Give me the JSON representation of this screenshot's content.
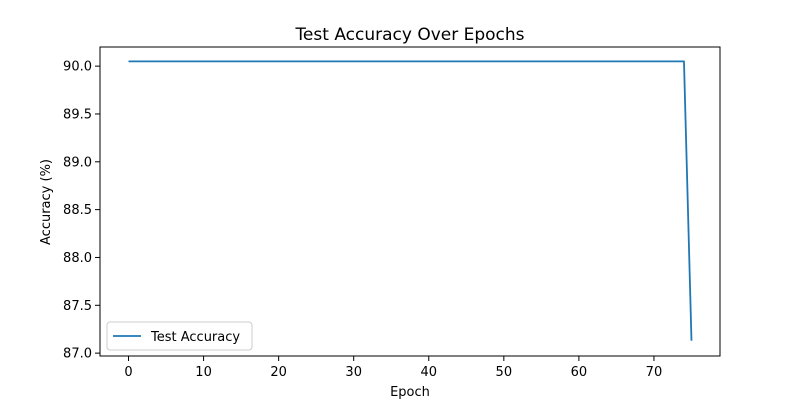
{
  "chart_data": {
    "type": "line",
    "title": "Test Accuracy Over Epochs",
    "xlabel": "Epoch",
    "ylabel": "Accuracy (%)",
    "xlim": [
      -3.8,
      78.8
    ],
    "ylim": [
      86.97,
      90.2
    ],
    "x_ticks": [
      0,
      10,
      20,
      30,
      40,
      50,
      60,
      70
    ],
    "y_ticks": [
      87.0,
      87.5,
      88.0,
      88.5,
      89.0,
      89.5,
      90.0
    ],
    "y_tick_labels": [
      "87.0",
      "87.5",
      "88.0",
      "88.5",
      "89.0",
      "89.5",
      "90.0"
    ],
    "grid": false,
    "legend_position": "lower-left",
    "series": [
      {
        "name": "Test Accuracy",
        "color": "#1f77b4",
        "x": [
          0,
          1,
          2,
          3,
          4,
          5,
          6,
          7,
          8,
          9,
          10,
          11,
          12,
          13,
          14,
          15,
          16,
          17,
          18,
          19,
          20,
          21,
          22,
          23,
          24,
          25,
          26,
          27,
          28,
          29,
          30,
          31,
          32,
          33,
          34,
          35,
          36,
          37,
          38,
          39,
          40,
          41,
          42,
          43,
          44,
          45,
          46,
          47,
          48,
          49,
          50,
          51,
          52,
          53,
          54,
          55,
          56,
          57,
          58,
          59,
          60,
          61,
          62,
          63,
          64,
          65,
          66,
          67,
          68,
          69,
          70,
          71,
          72,
          73,
          74,
          75
        ],
        "y": [
          90.05,
          90.05,
          90.05,
          90.05,
          90.05,
          90.05,
          90.05,
          90.05,
          90.05,
          90.05,
          90.05,
          90.05,
          90.05,
          90.05,
          90.05,
          90.05,
          90.05,
          90.05,
          90.05,
          90.05,
          90.05,
          90.05,
          90.05,
          90.05,
          90.05,
          90.05,
          90.05,
          90.05,
          90.05,
          90.05,
          90.05,
          90.05,
          90.05,
          90.05,
          90.05,
          90.05,
          90.05,
          90.05,
          90.05,
          90.05,
          90.05,
          90.05,
          90.05,
          90.05,
          90.05,
          90.05,
          90.05,
          90.05,
          90.05,
          90.05,
          90.05,
          90.05,
          90.05,
          90.05,
          90.05,
          90.05,
          90.05,
          90.05,
          90.05,
          90.05,
          90.05,
          90.05,
          90.05,
          90.05,
          90.05,
          90.05,
          90.05,
          90.05,
          90.05,
          90.05,
          90.05,
          90.05,
          90.05,
          90.05,
          90.05,
          87.13
        ]
      }
    ]
  }
}
